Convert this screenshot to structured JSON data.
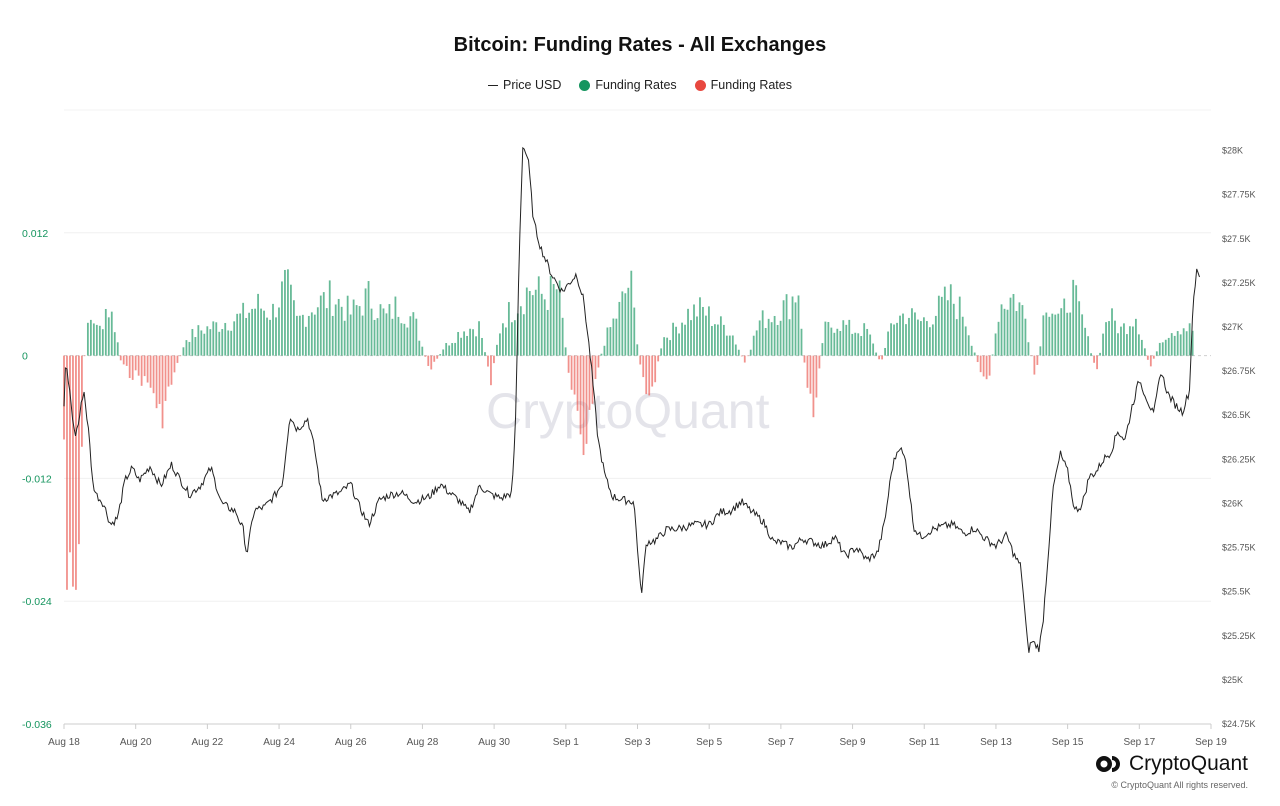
{
  "title": "Bitcoin: Funding Rates - All Exchanges",
  "legend": [
    {
      "label": "Price USD",
      "kind": "line",
      "color": "#222222"
    },
    {
      "label": "Funding Rates",
      "kind": "dot",
      "color": "#16955f"
    },
    {
      "label": "Funding Rates",
      "kind": "dot",
      "color": "#e8483f"
    }
  ],
  "watermark": "CryptoQuant",
  "brand": {
    "name": "CryptoQuant",
    "copyright": "© CryptoQuant All rights reserved."
  },
  "chart_data": {
    "type": "bar",
    "x_ticks": [
      "Aug 18",
      "Aug 20",
      "Aug 22",
      "Aug 24",
      "Aug 26",
      "Aug 28",
      "Aug 30",
      "Sep 1",
      "Sep 3",
      "Sep 5",
      "Sep 7",
      "Sep 9",
      "Sep 11",
      "Sep 13",
      "Sep 15",
      "Sep 17",
      "Sep 19"
    ],
    "x_range_days": [
      0,
      32
    ],
    "left_axis": {
      "label": "Funding Rates",
      "ticks": [
        "0.012",
        "0",
        "-0.012",
        "-0.024",
        "-0.036"
      ],
      "tick_values": [
        0.012,
        0,
        -0.012,
        -0.024,
        -0.036
      ],
      "ylim": [
        -0.036,
        0.024
      ],
      "color": "#16955f"
    },
    "right_axis": {
      "label": "Price USD",
      "ticks": [
        "$28K",
        "$27.75K",
        "$27.5K",
        "$27.25K",
        "$27K",
        "$26.75K",
        "$26.5K",
        "$26.25K",
        "$26K",
        "$25.75K",
        "$25.5K",
        "$25.25K",
        "$25K",
        "$24.75K"
      ],
      "tick_values": [
        28000,
        27750,
        27500,
        27250,
        27000,
        26750,
        26500,
        26250,
        26000,
        25750,
        25500,
        25250,
        25000,
        24750
      ],
      "ylim": [
        24750,
        28230
      ]
    },
    "grid": true,
    "legend_position": "top-center",
    "series": [
      {
        "name": "Funding Rates",
        "type": "bar",
        "positive_color": "#16955f",
        "negative_color": "#e8483f",
        "anchors": [
          [
            0.0,
            -0.01
          ],
          [
            0.1,
            -0.03
          ],
          [
            0.25,
            -0.033
          ],
          [
            0.35,
            -0.028
          ],
          [
            0.5,
            -0.015
          ],
          [
            0.6,
            0.003
          ],
          [
            0.8,
            0.005
          ],
          [
            0.95,
            0.0025
          ],
          [
            1.2,
            0.006
          ],
          [
            1.4,
            0.004
          ],
          [
            1.6,
            -0.001
          ],
          [
            1.8,
            -0.002
          ],
          [
            2.1,
            -0.0025
          ],
          [
            2.5,
            -0.004
          ],
          [
            2.6,
            -0.008
          ],
          [
            2.8,
            -0.006
          ],
          [
            3.1,
            -0.002
          ],
          [
            3.4,
            0.002
          ],
          [
            3.8,
            0.003
          ],
          [
            4.2,
            0.0035
          ],
          [
            4.5,
            0.004
          ],
          [
            4.9,
            0.0045
          ],
          [
            5.4,
            0.006
          ],
          [
            5.8,
            0.005
          ],
          [
            6.2,
            0.0085
          ],
          [
            6.5,
            0.004
          ],
          [
            7.0,
            0.006
          ],
          [
            7.5,
            0.007
          ],
          [
            8.0,
            0.005
          ],
          [
            8.5,
            0.007
          ],
          [
            9.0,
            0.0045
          ],
          [
            9.3,
            0.006
          ],
          [
            9.8,
            0.004
          ],
          [
            10.2,
            -0.002
          ],
          [
            10.6,
            0.001
          ],
          [
            11.1,
            0.003
          ],
          [
            11.6,
            0.0035
          ],
          [
            11.9,
            -0.003
          ],
          [
            12.2,
            0.004
          ],
          [
            12.6,
            0.006
          ],
          [
            13.0,
            0.008
          ],
          [
            13.4,
            0.007
          ],
          [
            13.8,
            0.008
          ],
          [
            14.05,
            -0.001
          ],
          [
            14.3,
            -0.006
          ],
          [
            14.5,
            -0.01
          ],
          [
            14.8,
            -0.003
          ],
          [
            15.1,
            0.002
          ],
          [
            15.5,
            0.0055
          ],
          [
            15.8,
            0.009
          ],
          [
            16.1,
            -0.002
          ],
          [
            16.4,
            -0.005
          ],
          [
            16.7,
            0.002
          ],
          [
            17.0,
            0.003
          ],
          [
            17.4,
            0.005
          ],
          [
            17.8,
            0.0055
          ],
          [
            18.2,
            0.004
          ],
          [
            18.6,
            0.003
          ],
          [
            19.0,
            -0.001
          ],
          [
            19.4,
            0.004
          ],
          [
            19.8,
            0.005
          ],
          [
            20.2,
            0.006
          ],
          [
            20.5,
            0.008
          ],
          [
            20.7,
            -0.003
          ],
          [
            20.9,
            -0.007
          ],
          [
            21.2,
            0.003
          ],
          [
            21.6,
            0.004
          ],
          [
            22.0,
            0.003
          ],
          [
            22.4,
            0.003
          ],
          [
            22.8,
            -0.001
          ],
          [
            23.1,
            0.004
          ],
          [
            23.5,
            0.005
          ],
          [
            23.9,
            0.004
          ],
          [
            24.3,
            0.005
          ],
          [
            24.7,
            0.007
          ],
          [
            25.1,
            0.005
          ],
          [
            25.5,
            -0.001
          ],
          [
            25.8,
            -0.003
          ],
          [
            26.1,
            0.006
          ],
          [
            26.5,
            0.007
          ],
          [
            26.8,
            0.005
          ],
          [
            27.1,
            -0.003
          ],
          [
            27.4,
            0.007
          ],
          [
            27.8,
            0.004
          ],
          [
            28.1,
            0.008
          ],
          [
            28.5,
            0.003
          ],
          [
            28.8,
            -0.002
          ],
          [
            29.1,
            0.005
          ],
          [
            29.5,
            0.003
          ],
          [
            29.9,
            0.005
          ],
          [
            30.3,
            -0.0015
          ],
          [
            30.6,
            0.002
          ],
          [
            30.9,
            0.003
          ],
          [
            31.2,
            0.0035
          ],
          [
            31.5,
            0.003
          ]
        ]
      },
      {
        "name": "Price USD",
        "type": "line",
        "color": "#222222",
        "anchors": [
          [
            0.0,
            26550
          ],
          [
            0.05,
            26800
          ],
          [
            0.15,
            26650
          ],
          [
            0.3,
            26380
          ],
          [
            0.4,
            26450
          ],
          [
            0.55,
            26650
          ],
          [
            0.7,
            26380
          ],
          [
            0.8,
            26120
          ],
          [
            0.9,
            26050
          ],
          [
            1.1,
            26000
          ],
          [
            1.3,
            25880
          ],
          [
            1.5,
            25920
          ],
          [
            1.7,
            26130
          ],
          [
            1.9,
            26200
          ],
          [
            2.1,
            26130
          ],
          [
            2.4,
            26210
          ],
          [
            2.7,
            26100
          ],
          [
            3.0,
            26220
          ],
          [
            3.2,
            26150
          ],
          [
            3.5,
            26050
          ],
          [
            3.8,
            26100
          ],
          [
            4.1,
            26200
          ],
          [
            4.4,
            26000
          ],
          [
            4.8,
            25950
          ],
          [
            5.0,
            25850
          ],
          [
            5.1,
            25710
          ],
          [
            5.3,
            25960
          ],
          [
            5.6,
            25980
          ],
          [
            5.9,
            26050
          ],
          [
            6.1,
            26120
          ],
          [
            6.3,
            26500
          ],
          [
            6.5,
            26420
          ],
          [
            6.8,
            26480
          ],
          [
            7.0,
            26300
          ],
          [
            7.2,
            26020
          ],
          [
            7.4,
            26040
          ],
          [
            7.7,
            26060
          ],
          [
            8.0,
            26110
          ],
          [
            8.2,
            26000
          ],
          [
            8.5,
            25880
          ],
          [
            8.8,
            26020
          ],
          [
            9.1,
            26050
          ],
          [
            9.4,
            26060
          ],
          [
            9.8,
            26010
          ],
          [
            10.2,
            26040
          ],
          [
            10.5,
            26110
          ],
          [
            10.7,
            26070
          ],
          [
            11.0,
            26020
          ],
          [
            11.3,
            25950
          ],
          [
            11.6,
            26100
          ],
          [
            11.9,
            26050
          ],
          [
            12.2,
            26030
          ],
          [
            12.5,
            26060
          ],
          [
            12.6,
            26480
          ],
          [
            12.7,
            27420
          ],
          [
            12.8,
            28030
          ],
          [
            12.95,
            27950
          ],
          [
            13.1,
            27600
          ],
          [
            13.3,
            27450
          ],
          [
            13.6,
            27300
          ],
          [
            13.9,
            27200
          ],
          [
            14.1,
            27250
          ],
          [
            14.3,
            27300
          ],
          [
            14.5,
            27150
          ],
          [
            14.7,
            26800
          ],
          [
            14.9,
            26360
          ],
          [
            15.1,
            26150
          ],
          [
            15.3,
            26040
          ],
          [
            15.6,
            26020
          ],
          [
            15.9,
            26010
          ],
          [
            16.0,
            25750
          ],
          [
            16.1,
            25470
          ],
          [
            16.25,
            25780
          ],
          [
            16.5,
            25790
          ],
          [
            16.8,
            25850
          ],
          [
            17.2,
            25860
          ],
          [
            17.6,
            25880
          ],
          [
            18.0,
            25880
          ],
          [
            18.3,
            25950
          ],
          [
            18.6,
            25960
          ],
          [
            18.9,
            26010
          ],
          [
            19.2,
            25950
          ],
          [
            19.5,
            25900
          ],
          [
            19.8,
            25780
          ],
          [
            20.0,
            25780
          ],
          [
            20.3,
            25750
          ],
          [
            20.6,
            25800
          ],
          [
            20.9,
            25780
          ],
          [
            21.2,
            25760
          ],
          [
            21.5,
            25810
          ],
          [
            21.8,
            25700
          ],
          [
            22.1,
            25750
          ],
          [
            22.4,
            25680
          ],
          [
            22.7,
            25720
          ],
          [
            22.9,
            25900
          ],
          [
            23.1,
            26200
          ],
          [
            23.3,
            26330
          ],
          [
            23.5,
            26230
          ],
          [
            23.7,
            25870
          ],
          [
            23.9,
            25810
          ],
          [
            24.2,
            25850
          ],
          [
            24.5,
            25870
          ],
          [
            24.8,
            25880
          ],
          [
            25.1,
            25830
          ],
          [
            25.4,
            25860
          ],
          [
            25.7,
            25800
          ],
          [
            26.0,
            25760
          ],
          [
            26.3,
            25820
          ],
          [
            26.5,
            25710
          ],
          [
            26.7,
            25640
          ],
          [
            26.9,
            25160
          ],
          [
            27.0,
            25220
          ],
          [
            27.2,
            25180
          ],
          [
            27.3,
            25300
          ],
          [
            27.4,
            25560
          ],
          [
            27.6,
            26090
          ],
          [
            27.8,
            26280
          ],
          [
            28.0,
            26180
          ],
          [
            28.2,
            25960
          ],
          [
            28.4,
            25990
          ],
          [
            28.6,
            26150
          ],
          [
            28.8,
            26180
          ],
          [
            29.0,
            26250
          ],
          [
            29.2,
            26290
          ],
          [
            29.4,
            26410
          ],
          [
            29.6,
            26360
          ],
          [
            29.8,
            26550
          ],
          [
            30.0,
            26700
          ],
          [
            30.2,
            26600
          ],
          [
            30.4,
            26500
          ],
          [
            30.6,
            26750
          ],
          [
            30.8,
            26620
          ],
          [
            31.0,
            26560
          ],
          [
            31.2,
            26520
          ],
          [
            31.4,
            26640
          ],
          [
            31.5,
            27150
          ],
          [
            31.6,
            27310
          ],
          [
            31.7,
            27280
          ]
        ]
      }
    ]
  }
}
